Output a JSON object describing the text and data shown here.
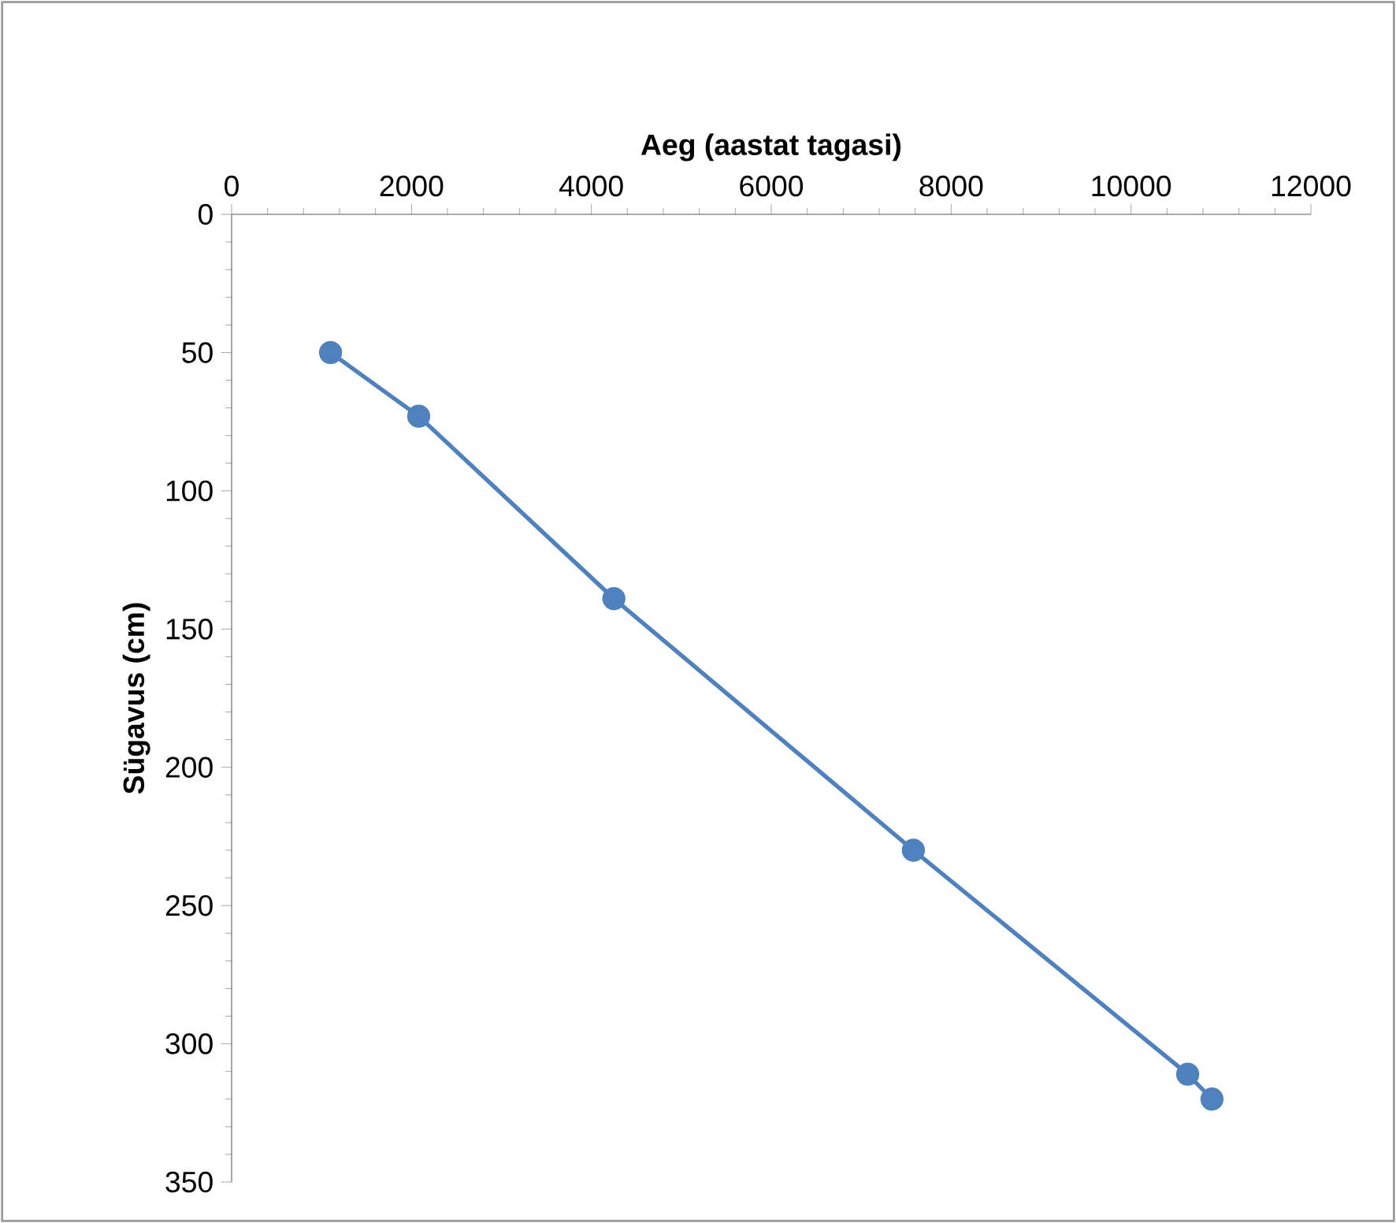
{
  "chart_data": {
    "type": "line",
    "xlabel": "Aeg (aastat tagasi)",
    "ylabel": "Sügavus (cm)",
    "x": [
      1100,
      2080,
      4250,
      7580,
      10630,
      10900
    ],
    "values": [
      50,
      73,
      139,
      230,
      311,
      320
    ],
    "color": "#4f81bd",
    "marker": "circle",
    "line_style": "solid",
    "grid": false,
    "xlim": [
      0,
      12000
    ],
    "xticks": [
      0,
      2000,
      4000,
      6000,
      8000,
      10000,
      12000
    ],
    "ylim": [
      350,
      0
    ],
    "yticks": [
      0,
      50,
      100,
      150,
      200,
      250,
      300,
      350
    ]
  }
}
